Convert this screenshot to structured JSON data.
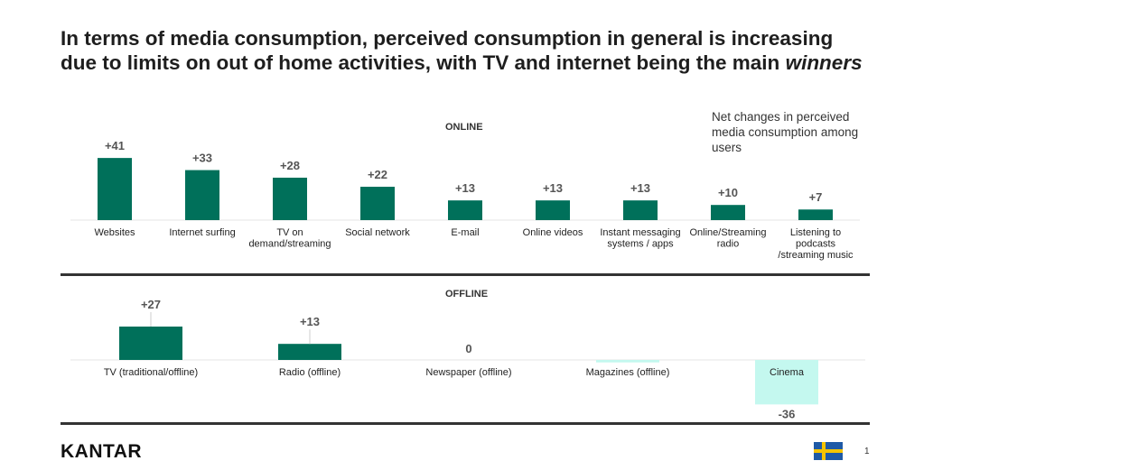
{
  "title": {
    "text": "In terms of media consumption, perceived consumption in general is increasing due to limits on out of home activities, with TV and internet being the main ",
    "emphasis": "winners"
  },
  "note": "Net changes in perceived media consumption among users",
  "colors": {
    "positive": "#00705a",
    "negative": "#c4f8ef",
    "axis": "#e6e6e6",
    "rule": "#333333"
  },
  "chart_data": [
    {
      "type": "bar",
      "title": "ONLINE",
      "xlabel": "",
      "ylabel": "",
      "categories": [
        [
          "Websites"
        ],
        [
          "Internet surfing"
        ],
        [
          "TV on",
          "demand/streaming"
        ],
        [
          "Social network"
        ],
        [
          "E-mail"
        ],
        [
          "Online videos"
        ],
        [
          "Instant messaging",
          "systems / apps"
        ],
        [
          "Online/Streaming",
          "radio"
        ],
        [
          "Listening to",
          "podcasts",
          "/streaming music"
        ]
      ],
      "values": [
        41,
        33,
        28,
        22,
        13,
        13,
        13,
        10,
        7
      ],
      "data_labels": [
        "+41",
        "+33",
        "+28",
        "+22",
        "+13",
        "+13",
        "+13",
        "+10",
        "+7"
      ],
      "ylim": [
        0,
        45
      ],
      "grid": false
    },
    {
      "type": "bar",
      "title": "OFFLINE",
      "xlabel": "",
      "ylabel": "",
      "categories": [
        [
          "TV (traditional/offline)"
        ],
        [
          "Radio (offline)"
        ],
        [
          "Newspaper (offline)"
        ],
        [
          "Magazines (offline)"
        ],
        [
          "Cinema"
        ]
      ],
      "values": [
        27,
        13,
        0,
        -2,
        -36
      ],
      "data_labels": [
        "+27",
        "+13",
        "0",
        "",
        "-36"
      ],
      "ylim": [
        -40,
        30
      ],
      "grid": false
    }
  ],
  "footer": {
    "brand": "KANTAR",
    "page": "1",
    "flag": "sweden-flag"
  }
}
